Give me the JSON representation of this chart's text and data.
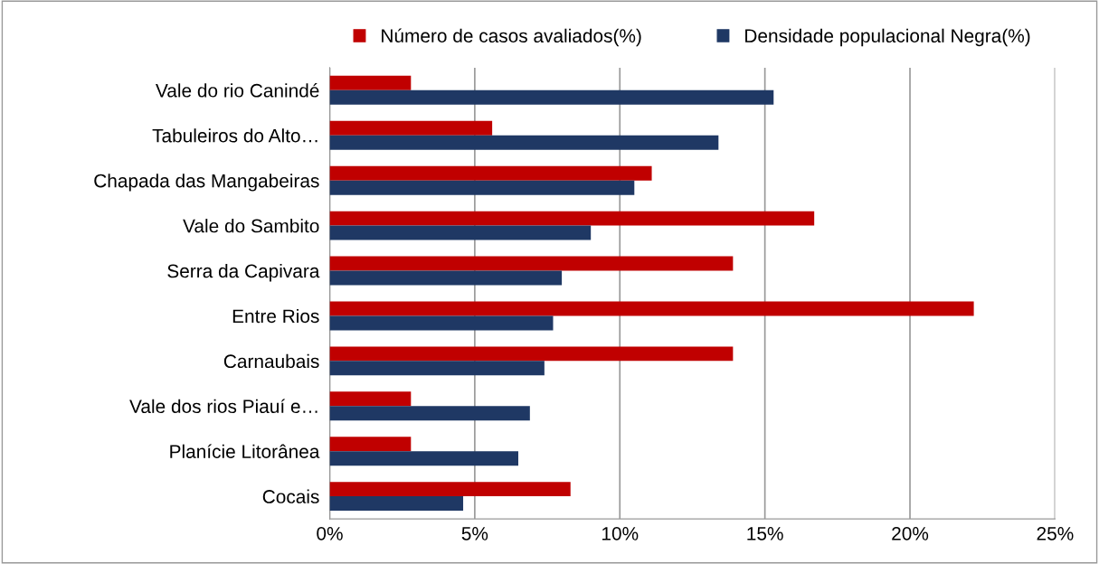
{
  "chart_data": {
    "type": "bar",
    "orientation": "horizontal",
    "categories": [
      "Vale do rio Canindé",
      "Tabuleiros do Alto…",
      "Chapada das Mangabeiras",
      "Vale do Sambito",
      "Serra da Capivara",
      "Entre Rios",
      "Carnaubais",
      "Vale dos rios Piauí e…",
      "Planície Litorânea",
      "Cocais"
    ],
    "series": [
      {
        "name": "Número de casos avaliados(%)",
        "color": "#c00000",
        "values": [
          2.8,
          5.6,
          11.1,
          16.7,
          13.9,
          22.2,
          13.9,
          2.8,
          2.8,
          8.3
        ]
      },
      {
        "name": "Densidade populacional Negra(%)",
        "color": "#1f3864",
        "values": [
          15.3,
          13.4,
          10.5,
          9.0,
          8.0,
          7.7,
          7.4,
          6.9,
          6.5,
          4.6
        ]
      }
    ],
    "xlim": [
      0,
      25
    ],
    "xticks": [
      {
        "value": 0,
        "label": "0%"
      },
      {
        "value": 5,
        "label": "5%"
      },
      {
        "value": 10,
        "label": "10%"
      },
      {
        "value": 15,
        "label": "15%"
      },
      {
        "value": 20,
        "label": "20%"
      },
      {
        "value": 25,
        "label": "25%"
      }
    ],
    "grid": "x",
    "legend": "top"
  }
}
